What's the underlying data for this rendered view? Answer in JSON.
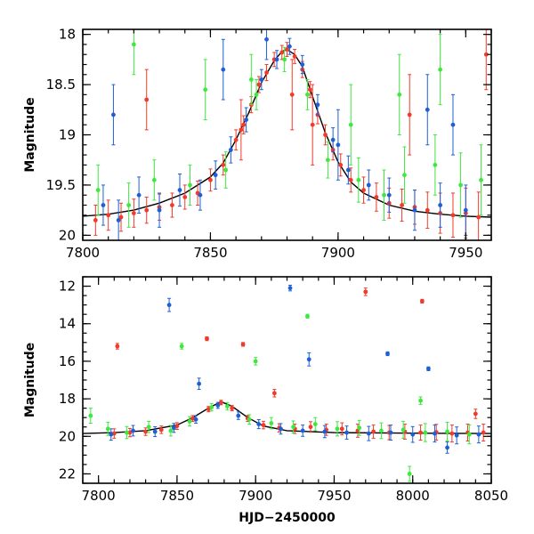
{
  "chart_data": [
    {
      "type": "scatter",
      "panel": "top",
      "xlabel": "",
      "ylabel": "Magnitude",
      "xlim": [
        7800,
        7960
      ],
      "ylim": [
        20.05,
        17.95
      ],
      "y_inverted": true,
      "xticks": [
        7800,
        7850,
        7900,
        7950
      ],
      "yticks": [
        18,
        18.5,
        19,
        19.5,
        20
      ],
      "xtick_labels": [
        "7800",
        "7850",
        "7900",
        "7950"
      ],
      "ytick_labels": [
        "18",
        "18.5",
        "19",
        "19.5",
        "20"
      ],
      "grid": false,
      "colors": {
        "blue": "#1f5fd6",
        "green": "#3ee83e",
        "red": "#f23a2a",
        "model": "#000000"
      },
      "model_curve": {
        "x": [
          7790,
          7800,
          7810,
          7820,
          7830,
          7840,
          7850,
          7855,
          7860,
          7865,
          7870,
          7875,
          7878,
          7880,
          7883,
          7886,
          7890,
          7895,
          7900,
          7905,
          7910,
          7920,
          7930,
          7940,
          7950,
          7960
        ],
        "y": [
          19.82,
          19.81,
          19.79,
          19.75,
          19.68,
          19.58,
          19.42,
          19.28,
          19.05,
          18.78,
          18.48,
          18.26,
          18.17,
          18.15,
          18.2,
          18.32,
          18.62,
          18.98,
          19.27,
          19.47,
          19.58,
          19.7,
          19.76,
          19.79,
          19.81,
          19.82
        ]
      },
      "series": [
        {
          "color": "red",
          "x": [
            7805,
            7810,
            7815,
            7820,
            7825,
            7830,
            7835,
            7840,
            7845,
            7850,
            7855,
            7860,
            7863,
            7866,
            7869,
            7872,
            7875,
            7878,
            7880,
            7883,
            7886,
            7889,
            7892,
            7895,
            7898,
            7901,
            7905,
            7910,
            7915,
            7920,
            7925,
            7930,
            7935,
            7940,
            7945,
            7950,
            7955,
            7825,
            7862,
            7882,
            7890,
            7928,
            7958
          ],
          "y": [
            19.85,
            19.8,
            19.82,
            19.78,
            19.75,
            19.72,
            19.7,
            19.62,
            19.58,
            19.45,
            19.3,
            19.05,
            18.9,
            18.7,
            18.5,
            18.38,
            18.25,
            18.18,
            18.15,
            18.22,
            18.35,
            18.55,
            18.8,
            19.0,
            19.15,
            19.3,
            19.45,
            19.55,
            19.62,
            19.68,
            19.7,
            19.72,
            19.75,
            19.78,
            19.8,
            19.78,
            19.82,
            18.65,
            18.95,
            18.6,
            18.9,
            18.8,
            18.2
          ],
          "yerr": [
            0.15,
            0.15,
            0.14,
            0.14,
            0.13,
            0.13,
            0.12,
            0.12,
            0.12,
            0.11,
            0.1,
            0.1,
            0.09,
            0.08,
            0.08,
            0.08,
            0.07,
            0.07,
            0.07,
            0.07,
            0.08,
            0.08,
            0.09,
            0.1,
            0.1,
            0.11,
            0.12,
            0.13,
            0.14,
            0.15,
            0.16,
            0.17,
            0.18,
            0.2,
            0.22,
            0.25,
            0.25,
            0.3,
            0.3,
            0.35,
            0.4,
            0.4,
            0.35
          ]
        },
        {
          "color": "blue",
          "x": [
            7808,
            7814,
            7822,
            7830,
            7838,
            7846,
            7852,
            7858,
            7864,
            7870,
            7876,
            7881,
            7886,
            7892,
            7898,
            7904,
            7912,
            7920,
            7930,
            7940,
            7950,
            7812,
            7855,
            7872,
            7900,
            7935,
            7945
          ],
          "y": [
            19.7,
            19.85,
            19.6,
            19.75,
            19.55,
            19.6,
            19.4,
            19.15,
            18.85,
            18.45,
            18.25,
            18.12,
            18.3,
            18.7,
            19.05,
            19.35,
            19.5,
            19.6,
            19.75,
            19.7,
            19.75,
            18.8,
            18.35,
            18.05,
            19.1,
            18.75,
            18.9
          ],
          "yerr": [
            0.2,
            0.2,
            0.18,
            0.17,
            0.16,
            0.15,
            0.14,
            0.13,
            0.12,
            0.1,
            0.09,
            0.08,
            0.09,
            0.1,
            0.12,
            0.14,
            0.15,
            0.17,
            0.2,
            0.22,
            0.25,
            0.3,
            0.3,
            0.2,
            0.35,
            0.35,
            0.3
          ]
        },
        {
          "color": "green",
          "x": [
            7806,
            7818,
            7828,
            7842,
            7856,
            7868,
            7879,
            7888,
            7896,
            7908,
            7918,
            7926,
            7938,
            7948,
            7956,
            7820,
            7848,
            7866,
            7905,
            7924,
            7940
          ],
          "y": [
            19.55,
            19.7,
            19.45,
            19.5,
            19.35,
            18.6,
            18.25,
            18.6,
            19.25,
            19.45,
            19.6,
            19.4,
            19.3,
            19.5,
            19.45,
            18.1,
            18.55,
            18.45,
            18.9,
            18.6,
            18.35
          ],
          "yerr": [
            0.25,
            0.22,
            0.2,
            0.2,
            0.18,
            0.15,
            0.12,
            0.15,
            0.18,
            0.22,
            0.25,
            0.28,
            0.3,
            0.32,
            0.35,
            0.3,
            0.3,
            0.25,
            0.4,
            0.4,
            0.35
          ]
        }
      ]
    },
    {
      "type": "scatter",
      "panel": "bottom",
      "xlabel": "HJD−2450000",
      "ylabel": "Magnitude",
      "xlim": [
        7790,
        8050
      ],
      "ylim": [
        22.5,
        11.5
      ],
      "y_inverted": true,
      "xticks": [
        7800,
        7850,
        7900,
        7950,
        8000,
        8050
      ],
      "yticks": [
        12,
        14,
        16,
        18,
        20,
        22
      ],
      "xtick_labels": [
        "7800",
        "7850",
        "7900",
        "7950",
        "8000",
        "8050"
      ],
      "ytick_labels": [
        "12",
        "14",
        "16",
        "18",
        "20",
        "22"
      ],
      "grid": false,
      "colors": {
        "blue": "#1f5fd6",
        "green": "#3ee83e",
        "red": "#f23a2a",
        "model": "#000000"
      },
      "model_curve": {
        "x": [
          7790,
          7810,
          7830,
          7850,
          7860,
          7870,
          7878,
          7885,
          7895,
          7905,
          7920,
          7950,
          8000,
          8050
        ],
        "y": [
          19.85,
          19.8,
          19.7,
          19.4,
          19.0,
          18.5,
          18.15,
          18.4,
          19.0,
          19.45,
          19.7,
          19.8,
          19.83,
          19.85
        ]
      },
      "series": [
        {
          "color": "red",
          "x": [
            7810,
            7820,
            7830,
            7840,
            7850,
            7860,
            7870,
            7878,
            7885,
            7895,
            7905,
            7915,
            7925,
            7935,
            7945,
            7955,
            7965,
            7975,
            7985,
            7995,
            8005,
            8015,
            8025,
            8035,
            8045,
            7812,
            7869,
            7892,
            7912,
            7970,
            8006,
            8040
          ],
          "y": [
            19.85,
            19.8,
            19.75,
            19.65,
            19.45,
            19.05,
            18.55,
            18.2,
            18.5,
            19.05,
            19.4,
            19.55,
            19.6,
            19.5,
            19.65,
            19.6,
            19.7,
            19.75,
            19.8,
            19.75,
            19.8,
            19.78,
            19.85,
            19.8,
            19.8,
            15.2,
            14.8,
            15.1,
            17.7,
            12.3,
            12.8,
            18.8
          ],
          "yerr": [
            0.25,
            0.22,
            0.2,
            0.2,
            0.18,
            0.16,
            0.14,
            0.12,
            0.14,
            0.16,
            0.2,
            0.22,
            0.25,
            0.28,
            0.3,
            0.32,
            0.35,
            0.35,
            0.38,
            0.4,
            0.4,
            0.42,
            0.45,
            0.45,
            0.45,
            0.15,
            0.1,
            0.1,
            0.2,
            0.2,
            0.1,
            0.25
          ]
        },
        {
          "color": "blue",
          "x": [
            7808,
            7822,
            7836,
            7848,
            7862,
            7876,
            7889,
            7902,
            7916,
            7930,
            7944,
            7958,
            7972,
            7986,
            8000,
            8014,
            8028,
            8042,
            7845,
            7864,
            7922,
            7934,
            7984,
            8010,
            8022
          ],
          "y": [
            19.9,
            19.7,
            19.75,
            19.55,
            19.1,
            18.35,
            18.9,
            19.35,
            19.6,
            19.7,
            19.75,
            19.8,
            19.85,
            19.8,
            19.9,
            19.85,
            19.95,
            19.9,
            13.0,
            17.2,
            12.1,
            15.9,
            15.6,
            16.4,
            20.6
          ],
          "yerr": [
            0.3,
            0.28,
            0.26,
            0.24,
            0.2,
            0.16,
            0.2,
            0.24,
            0.28,
            0.3,
            0.32,
            0.35,
            0.38,
            0.4,
            0.42,
            0.45,
            0.45,
            0.45,
            0.35,
            0.3,
            0.15,
            0.35,
            0.1,
            0.1,
            0.3
          ]
        },
        {
          "color": "green",
          "x": [
            7806,
            7818,
            7832,
            7846,
            7858,
            7872,
            7882,
            7896,
            7910,
            7924,
            7938,
            7952,
            7966,
            7980,
            7994,
            8008,
            8022,
            8036,
            7853,
            7900,
            7933,
            8005,
            7795,
            7998
          ],
          "y": [
            19.6,
            19.8,
            19.5,
            19.7,
            19.2,
            18.45,
            18.4,
            19.1,
            19.3,
            19.5,
            19.35,
            19.6,
            19.55,
            19.7,
            19.65,
            19.8,
            19.75,
            19.9,
            15.2,
            16.0,
            13.6,
            18.1,
            18.9,
            22.0
          ],
          "yerr": [
            0.35,
            0.32,
            0.3,
            0.28,
            0.25,
            0.2,
            0.2,
            0.25,
            0.3,
            0.32,
            0.35,
            0.38,
            0.4,
            0.42,
            0.45,
            0.48,
            0.5,
            0.5,
            0.15,
            0.2,
            0.1,
            0.2,
            0.4,
            0.4
          ]
        }
      ]
    }
  ]
}
